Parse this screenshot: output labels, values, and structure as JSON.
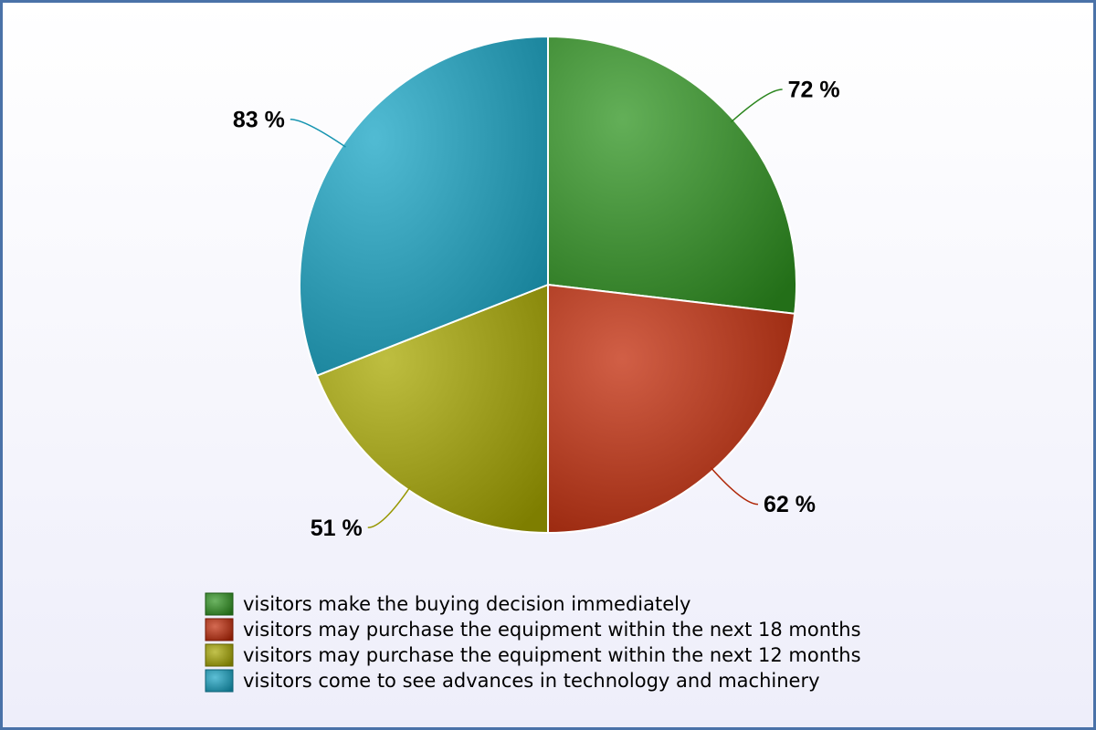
{
  "chart_data": {
    "type": "pie",
    "categories": [
      "visitors make the buying decision immediately",
      "visitors may purchase the equipment within the next 18 months",
      "visitors may purchase the equipment within the next 12 months",
      "visitors come to see advances in technology and machinery"
    ],
    "values": [
      72,
      62,
      51,
      83
    ],
    "value_labels": [
      "72 %",
      "62 %",
      "51 %",
      "83 %"
    ],
    "colors": [
      "#2f9420",
      "#c22a08",
      "#a8a800",
      "#17a4c4"
    ]
  }
}
